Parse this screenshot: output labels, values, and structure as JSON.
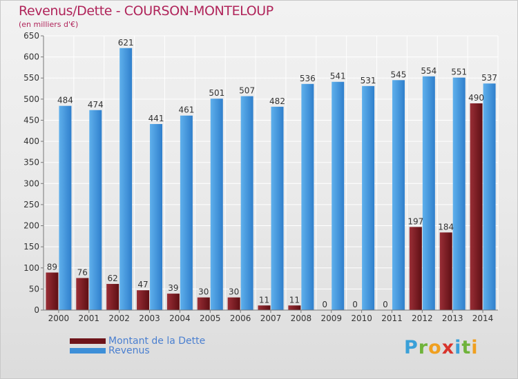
{
  "header": {
    "title": "Revenus/Dette - COURSON-MONTELOUP",
    "subtitle": "(en milliers d'€)"
  },
  "logo": {
    "text": "Proxiti",
    "letters": [
      {
        "char": "P",
        "color": "#3aa0d8"
      },
      {
        "char": "r",
        "color": "#6fb33a"
      },
      {
        "char": "o",
        "color": "#f0a020"
      },
      {
        "char": "x",
        "color": "#d8342c"
      },
      {
        "char": "i",
        "color": "#3aa0d8"
      },
      {
        "char": "t",
        "color": "#6fb33a"
      },
      {
        "char": "i",
        "color": "#f0a020"
      }
    ]
  },
  "colors": {
    "title": "#b0245a",
    "dette": "#7a1a20",
    "revenus": "#3d8fd8",
    "legend_text": "#4a7fd0"
  },
  "chart_data": {
    "type": "bar",
    "title": "Revenus/Dette - COURSON-MONTELOUP",
    "ylabel": "(en milliers d'€)",
    "xlabel": "",
    "ylim": [
      0,
      650
    ],
    "yticks": [
      0,
      50,
      100,
      150,
      200,
      250,
      300,
      350,
      400,
      450,
      500,
      550,
      600,
      650
    ],
    "grid": true,
    "legend_position": "bottom-left",
    "categories": [
      "2000",
      "2001",
      "2002",
      "2003",
      "2004",
      "2005",
      "2006",
      "2007",
      "2008",
      "2009",
      "2010",
      "2011",
      "2012",
      "2013",
      "2014"
    ],
    "series": [
      {
        "name": "Montant de la Dette",
        "color": "#7a1a20",
        "values": [
          89,
          76,
          62,
          47,
          39,
          30,
          30,
          11,
          11,
          0,
          0,
          0,
          197,
          184,
          490
        ]
      },
      {
        "name": "Revenus",
        "color": "#3d8fd8",
        "values": [
          484,
          474,
          621,
          441,
          461,
          501,
          507,
          482,
          536,
          541,
          531,
          545,
          554,
          551,
          537
        ]
      }
    ]
  }
}
